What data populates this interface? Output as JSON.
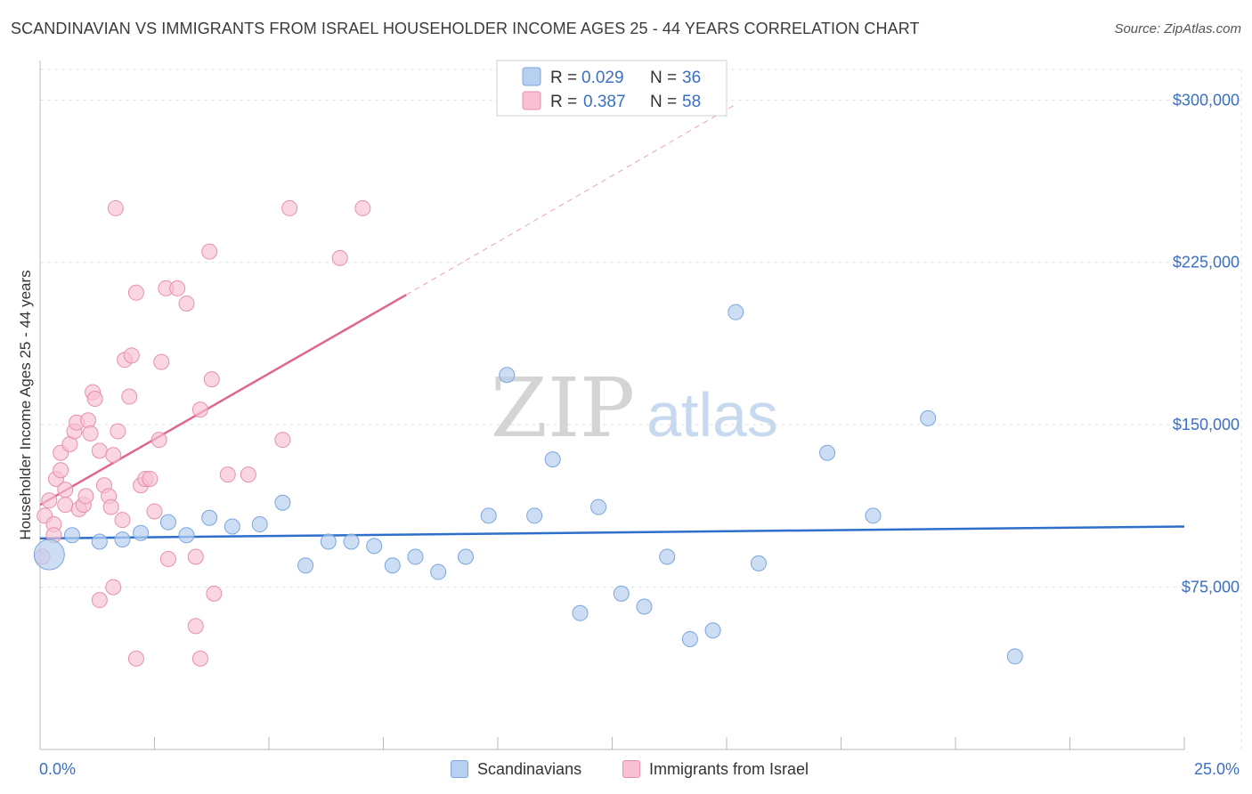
{
  "title": "SCANDINAVIAN VS IMMIGRANTS FROM ISRAEL HOUSEHOLDER INCOME AGES 25 - 44 YEARS CORRELATION CHART",
  "source": "Source: ZipAtlas.com",
  "watermark": {
    "zip": "ZIP",
    "atlas": "atlas"
  },
  "legend_box": {
    "rows": [
      {
        "r_label": "R =",
        "r_value": "0.029",
        "n_label": "N =",
        "n_value": "36"
      },
      {
        "r_label": "R =",
        "r_value": "0.387",
        "n_label": "N =",
        "n_value": "58"
      }
    ]
  },
  "bottom_legend": {
    "series1": "Scandinavians",
    "series2": "Immigrants from Israel"
  },
  "colors": {
    "blue_fill": "#b8d0f0",
    "blue_stroke": "#7aa6de",
    "blue_line": "#2e6fcb",
    "pink_fill": "#f8c0d2",
    "pink_stroke": "#e690ae",
    "pink_line": "#e06690",
    "accent_text": "#3a6fc4"
  },
  "chart_data": {
    "type": "scatter",
    "title": "SCANDINAVIAN VS IMMIGRANTS FROM ISRAEL HOUSEHOLDER INCOME AGES 25 - 44 YEARS CORRELATION CHART",
    "xlabel": "",
    "ylabel": "Householder Income Ages 25 - 44 years",
    "xlim": [
      0,
      25
    ],
    "ylim": [
      0,
      310000
    ],
    "x_tick_labels": [
      "0.0%",
      "25.0%"
    ],
    "y_ticks": [
      75000,
      150000,
      225000,
      300000
    ],
    "y_tick_labels": [
      "$75,000",
      "$150,000",
      "$225,000",
      "$300,000"
    ],
    "grid": true,
    "legend_position": "top-center",
    "series": [
      {
        "name": "Scandinavians",
        "R": 0.029,
        "N": 36,
        "trend": {
          "x": [
            0,
            25
          ],
          "y": [
            97500,
            103000
          ]
        },
        "points": [
          [
            0.2,
            90000
          ],
          [
            0.7,
            99000
          ],
          [
            1.3,
            96000
          ],
          [
            1.8,
            97000
          ],
          [
            2.2,
            100000
          ],
          [
            2.8,
            105000
          ],
          [
            3.2,
            99000
          ],
          [
            3.7,
            107000
          ],
          [
            4.2,
            103000
          ],
          [
            4.8,
            104000
          ],
          [
            5.3,
            114000
          ],
          [
            5.8,
            85000
          ],
          [
            6.3,
            96000
          ],
          [
            6.8,
            96000
          ],
          [
            7.3,
            94000
          ],
          [
            7.7,
            85000
          ],
          [
            8.2,
            89000
          ],
          [
            8.7,
            82000
          ],
          [
            9.3,
            89000
          ],
          [
            9.8,
            108000
          ],
          [
            10.2,
            173000
          ],
          [
            10.8,
            108000
          ],
          [
            11.2,
            134000
          ],
          [
            11.8,
            63000
          ],
          [
            12.2,
            112000
          ],
          [
            12.7,
            72000
          ],
          [
            13.2,
            66000
          ],
          [
            13.7,
            89000
          ],
          [
            14.2,
            51000
          ],
          [
            14.7,
            55000
          ],
          [
            15.2,
            202000
          ],
          [
            15.7,
            86000
          ],
          [
            17.2,
            137000
          ],
          [
            18.2,
            108000
          ],
          [
            19.4,
            153000
          ],
          [
            21.3,
            43000
          ]
        ]
      },
      {
        "name": "Immigrants from Israel",
        "R": 0.387,
        "N": 58,
        "trend_solid": {
          "x": [
            0,
            8.0
          ],
          "y": [
            113000,
            210000
          ]
        },
        "trend_dashed": {
          "x": [
            8.0,
            15.2
          ],
          "y": [
            210000,
            298000
          ]
        },
        "points": [
          [
            0.05,
            89000
          ],
          [
            0.1,
            108000
          ],
          [
            0.2,
            115000
          ],
          [
            0.3,
            104000
          ],
          [
            0.3,
            99000
          ],
          [
            0.35,
            125000
          ],
          [
            0.45,
            137000
          ],
          [
            0.45,
            129000
          ],
          [
            0.55,
            120000
          ],
          [
            0.55,
            113000
          ],
          [
            0.65,
            141000
          ],
          [
            0.75,
            147000
          ],
          [
            0.8,
            151000
          ],
          [
            0.85,
            111000
          ],
          [
            0.95,
            113000
          ],
          [
            1.0,
            117000
          ],
          [
            1.05,
            152000
          ],
          [
            1.1,
            146000
          ],
          [
            1.15,
            165000
          ],
          [
            1.2,
            162000
          ],
          [
            1.3,
            138000
          ],
          [
            1.4,
            122000
          ],
          [
            1.5,
            117000
          ],
          [
            1.55,
            112000
          ],
          [
            1.6,
            136000
          ],
          [
            1.65,
            250000
          ],
          [
            1.7,
            147000
          ],
          [
            1.8,
            106000
          ],
          [
            1.85,
            180000
          ],
          [
            1.95,
            163000
          ],
          [
            2.0,
            182000
          ],
          [
            2.1,
            211000
          ],
          [
            2.2,
            122000
          ],
          [
            2.3,
            125000
          ],
          [
            2.4,
            125000
          ],
          [
            2.5,
            110000
          ],
          [
            2.6,
            143000
          ],
          [
            2.65,
            179000
          ],
          [
            2.75,
            213000
          ],
          [
            3.0,
            213000
          ],
          [
            3.2,
            206000
          ],
          [
            3.5,
            157000
          ],
          [
            3.7,
            230000
          ],
          [
            3.75,
            171000
          ],
          [
            4.1,
            127000
          ],
          [
            4.55,
            127000
          ],
          [
            5.3,
            143000
          ],
          [
            5.45,
            250000
          ],
          [
            6.55,
            227000
          ],
          [
            7.05,
            250000
          ],
          [
            1.3,
            69000
          ],
          [
            1.6,
            75000
          ],
          [
            2.1,
            42000
          ],
          [
            2.8,
            88000
          ],
          [
            3.4,
            57000
          ],
          [
            3.4,
            89000
          ],
          [
            3.5,
            42000
          ],
          [
            3.8,
            72000
          ]
        ]
      }
    ]
  }
}
